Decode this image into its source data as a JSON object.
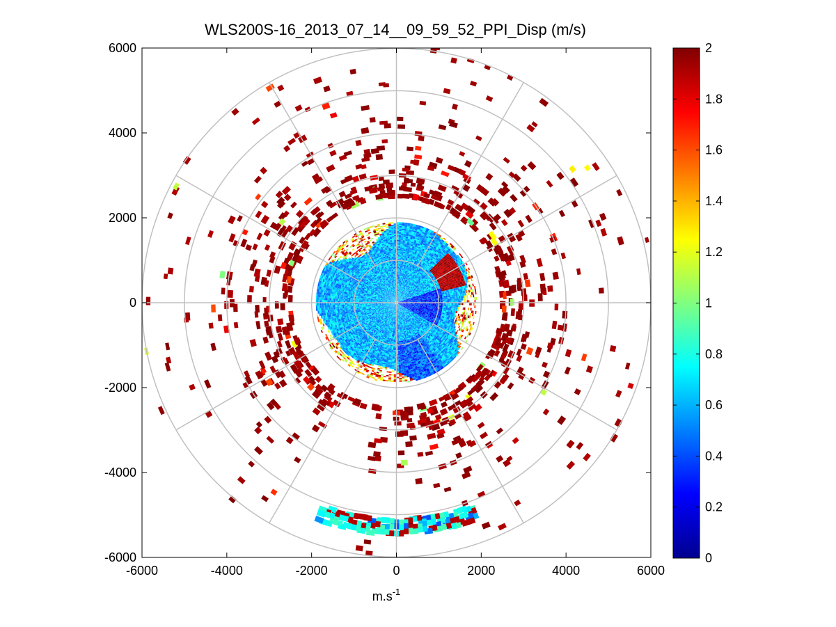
{
  "chart_data": {
    "type": "polar_ppi_scatter",
    "title": "WLS200S-16_2013_07_14__09_59_52_PPI_Disp (m/s)",
    "xlabel_base": "m.s",
    "xlabel_exp": "-1",
    "ylabel": "",
    "xlim": [
      -6000,
      6000
    ],
    "ylim": [
      -6000,
      6000
    ],
    "x_ticks": [
      -6000,
      -4000,
      -2000,
      0,
      2000,
      4000,
      6000
    ],
    "x_tick_labels": [
      "-6000",
      "-4000",
      "-2000",
      "0",
      "2000",
      "4000",
      "6000"
    ],
    "y_ticks": [
      6000,
      4000,
      2000,
      0,
      -2000,
      -4000,
      -6000
    ],
    "y_tick_labels": [
      "6000",
      "4000",
      "2000",
      "0",
      "-2000",
      "-4000",
      "-6000"
    ],
    "polar_grid": {
      "ring_radii": [
        1000,
        2000,
        3000,
        4000,
        5000,
        6000
      ],
      "spoke_angles_deg": [
        0,
        30,
        60,
        90,
        120,
        150,
        180,
        210,
        240,
        270,
        300,
        330
      ]
    },
    "colorbar": {
      "min": 0,
      "max": 2,
      "ticks": [
        2,
        1.8,
        1.6,
        1.4,
        1.2,
        1,
        0.8,
        0.6,
        0.4,
        0.2,
        0
      ],
      "tick_labels": [
        "2",
        "1.8",
        "1.6",
        "1.4",
        "1.2",
        "1",
        "0.8",
        "0.6",
        "0.4",
        "0.2",
        "0"
      ],
      "colormap": "jet"
    },
    "regions": [
      {
        "name": "inner core",
        "r_min": 0,
        "r_max": 1900,
        "typical_value": 0.65,
        "note": "cyan/blue, velocity dispersion ~0.5-0.8 m/s"
      },
      {
        "name": "low pocket east",
        "r_min": 200,
        "r_max": 1100,
        "az_deg": 95,
        "typical_value": 0.2
      },
      {
        "name": "low pocket south",
        "r_min": 900,
        "r_max": 1900,
        "az_deg": 160,
        "typical_value": 0.35
      },
      {
        "name": "transition ring",
        "r_min": 1800,
        "r_max": 2600,
        "typical_value": 1.6,
        "note": "mixed green/yellow/red"
      },
      {
        "name": "outer saturated",
        "r_min": 2400,
        "r_max": 6000,
        "typical_value": 2,
        "note": "sparse dark red pixels"
      },
      {
        "name": "southern arc",
        "r_min": 5000,
        "r_max": 5800,
        "az_from_deg": 160,
        "az_to_deg": 200,
        "typical_value": 1.0
      }
    ]
  },
  "colors": {
    "grid": "#c0c0c0",
    "axis": "#000000",
    "background": "#ffffff"
  }
}
